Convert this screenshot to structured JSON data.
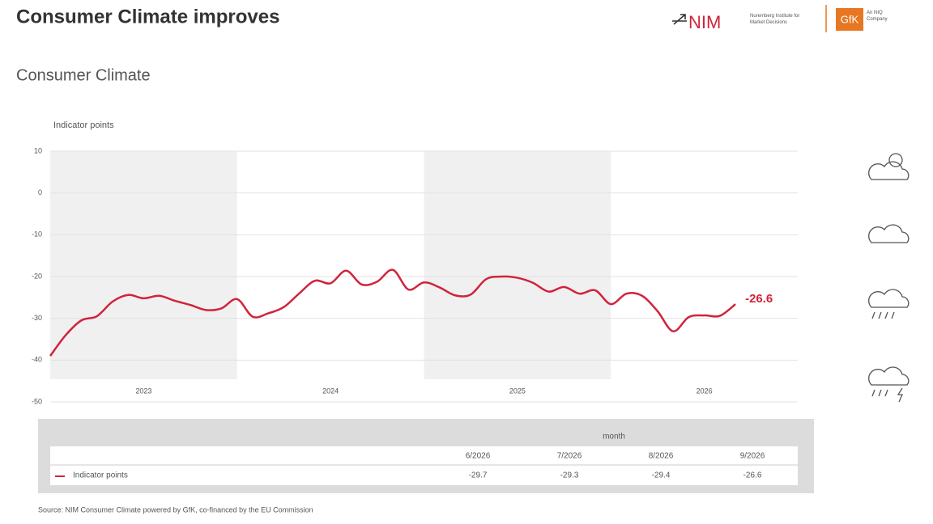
{
  "header": {
    "title": "Consumer Climate improves",
    "logo_nim": "NIM",
    "logo_nim_sub": "Nuremberg Institute for Market Decisions",
    "logo_gfk": "GfK",
    "logo_gfk_sub": "An NIQ Company"
  },
  "chart_data": {
    "type": "line",
    "title": "Consumer Climate",
    "y_label": "Indicator points",
    "groups": [
      "2023",
      "2024",
      "2025",
      "2026"
    ],
    "categories": [
      null,
      null,
      null,
      null,
      null,
      null,
      null,
      null,
      null,
      null,
      null,
      null,
      null,
      null,
      null,
      null,
      null,
      null,
      null,
      null,
      null,
      null,
      null,
      null,
      null,
      null,
      null,
      null,
      null,
      null,
      null,
      null,
      null,
      null,
      null,
      null,
      null,
      null,
      null,
      null,
      null,
      "6/2026",
      "7/2026",
      "8/2026",
      "9/2026"
    ],
    "series": [
      {
        "name": "Indicator points",
        "color": "#d0243c",
        "values": [
          -39,
          -34,
          -30.5,
          -29.5,
          -26,
          -24.4,
          -25.2,
          -24.6,
          -25.8,
          -26.8,
          -28,
          -27.6,
          -25.4,
          -29.6,
          -28.8,
          -27.3,
          -24,
          -21,
          -21.6,
          -18.6,
          -21.9,
          -21.2,
          -18.4,
          -23.1,
          -21.4,
          -22.6,
          -24.5,
          -24.3,
          -20.6,
          -20,
          -20.3,
          -21.5,
          -23.6,
          -22.5,
          -24.1,
          -23.3,
          -26.6,
          -24.1,
          -24.6,
          -28.3,
          -33.1,
          -29.7,
          -29.3,
          -29.4,
          -26.6
        ]
      }
    ],
    "ylim": [
      -50,
      10
    ],
    "yticks": [
      10,
      0,
      -10,
      -20,
      -30,
      -40,
      -50
    ],
    "grid": true,
    "table_header": "month",
    "source": "Source: NIM Consumer Climate powered by GfK, co-financed by the EU Commission"
  }
}
